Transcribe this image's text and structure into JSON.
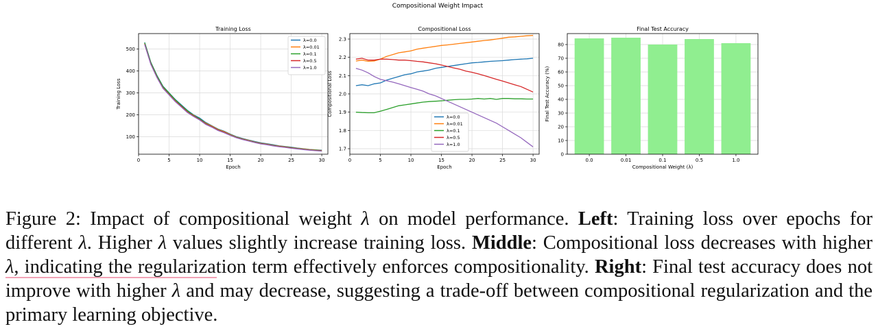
{
  "suptitle": "Compositional Weight Impact",
  "colors": {
    "lambda_0_0": "#1f77b4",
    "lambda_0_01": "#ff7f0e",
    "lambda_0_1": "#2ca02c",
    "lambda_0_5": "#d62728",
    "lambda_1_0": "#9467bd",
    "bar": "#90ee90"
  },
  "chart_data": [
    {
      "type": "line",
      "title": "Training Loss",
      "xlabel": "Epoch",
      "ylabel": "Training Loss",
      "xlim": [
        0,
        31
      ],
      "ylim": [
        20,
        570
      ],
      "xticks": [
        0,
        5,
        10,
        15,
        20,
        25,
        30
      ],
      "yticks": [
        100,
        200,
        300,
        400,
        500
      ],
      "grid": true,
      "legend": "top-right",
      "x": [
        1,
        2,
        3,
        4,
        5,
        6,
        7,
        8,
        9,
        10,
        11,
        12,
        13,
        14,
        15,
        16,
        17,
        18,
        19,
        20,
        21,
        22,
        23,
        24,
        25,
        26,
        27,
        28,
        29,
        30
      ],
      "series": [
        {
          "name": "λ=0.0",
          "values": [
            530,
            440,
            380,
            330,
            300,
            270,
            245,
            220,
            200,
            185,
            165,
            150,
            135,
            125,
            112,
            100,
            92,
            85,
            78,
            72,
            68,
            63,
            58,
            55,
            52,
            48,
            45,
            42,
            40,
            38
          ]
        },
        {
          "name": "λ=0.01",
          "values": [
            525,
            435,
            375,
            325,
            295,
            265,
            240,
            215,
            198,
            180,
            162,
            148,
            133,
            123,
            110,
            98,
            90,
            83,
            76,
            70,
            66,
            61,
            57,
            54,
            50,
            47,
            44,
            41,
            39,
            37
          ]
        },
        {
          "name": "λ=0.1",
          "values": [
            528,
            438,
            378,
            328,
            298,
            268,
            242,
            218,
            196,
            182,
            160,
            146,
            131,
            121,
            108,
            97,
            89,
            82,
            75,
            69,
            65,
            60,
            56,
            53,
            49,
            46,
            43,
            40,
            38,
            36
          ]
        },
        {
          "name": "λ=0.5",
          "values": [
            522,
            432,
            372,
            322,
            292,
            262,
            238,
            212,
            194,
            178,
            158,
            145,
            130,
            120,
            107,
            96,
            88,
            81,
            74,
            68,
            64,
            59,
            55,
            52,
            48,
            45,
            42,
            39,
            37,
            35
          ]
        },
        {
          "name": "λ=1.0",
          "values": [
            520,
            430,
            370,
            320,
            290,
            260,
            235,
            210,
            192,
            176,
            156,
            143,
            128,
            118,
            106,
            95,
            87,
            80,
            73,
            67,
            63,
            58,
            54,
            51,
            47,
            44,
            41,
            38,
            36,
            34
          ]
        }
      ]
    },
    {
      "type": "line",
      "title": "Compositional Loss",
      "xlabel": "Epoch",
      "ylabel": "Compositional Loss",
      "xlim": [
        0,
        31
      ],
      "ylim": [
        1.67,
        2.33
      ],
      "xticks": [
        0,
        5,
        10,
        15,
        20,
        25,
        30
      ],
      "yticks": [
        1.7,
        1.8,
        1.9,
        2.0,
        2.1,
        2.2,
        2.3
      ],
      "grid": true,
      "legend": "bottom-center",
      "x": [
        1,
        2,
        3,
        4,
        5,
        6,
        7,
        8,
        9,
        10,
        11,
        12,
        13,
        14,
        15,
        16,
        17,
        18,
        19,
        20,
        21,
        22,
        23,
        24,
        25,
        26,
        27,
        28,
        29,
        30
      ],
      "series": [
        {
          "name": "λ=0.0",
          "values": [
            2.045,
            2.05,
            2.045,
            2.055,
            2.06,
            2.075,
            2.085,
            2.095,
            2.105,
            2.11,
            2.12,
            2.125,
            2.13,
            2.14,
            2.145,
            2.15,
            2.155,
            2.16,
            2.165,
            2.17,
            2.172,
            2.175,
            2.178,
            2.18,
            2.182,
            2.185,
            2.188,
            2.19,
            2.192,
            2.195
          ]
        },
        {
          "name": "λ=0.01",
          "values": [
            2.18,
            2.185,
            2.178,
            2.18,
            2.19,
            2.205,
            2.215,
            2.225,
            2.23,
            2.235,
            2.245,
            2.25,
            2.255,
            2.26,
            2.265,
            2.268,
            2.272,
            2.276,
            2.28,
            2.284,
            2.288,
            2.292,
            2.295,
            2.3,
            2.305,
            2.31,
            2.312,
            2.315,
            2.318,
            2.32
          ]
        },
        {
          "name": "λ=0.1",
          "values": [
            1.9,
            1.898,
            1.897,
            1.897,
            1.905,
            1.915,
            1.925,
            1.935,
            1.94,
            1.945,
            1.95,
            1.955,
            1.958,
            1.96,
            1.962,
            1.965,
            1.968,
            1.97,
            1.97,
            1.972,
            1.975,
            1.972,
            1.975,
            1.97,
            1.975,
            1.975,
            1.973,
            1.973,
            1.972,
            1.972
          ]
        },
        {
          "name": "λ=0.5",
          "values": [
            2.19,
            2.195,
            2.185,
            2.185,
            2.19,
            2.19,
            2.188,
            2.185,
            2.185,
            2.182,
            2.178,
            2.175,
            2.17,
            2.165,
            2.158,
            2.15,
            2.142,
            2.135,
            2.125,
            2.118,
            2.11,
            2.1,
            2.09,
            2.08,
            2.07,
            2.06,
            2.05,
            2.04,
            2.025,
            2.01
          ]
        },
        {
          "name": "λ=1.0",
          "values": [
            2.14,
            2.13,
            2.115,
            2.095,
            2.08,
            2.072,
            2.065,
            2.055,
            2.045,
            2.035,
            2.025,
            2.015,
            2.0,
            1.99,
            1.975,
            1.96,
            1.945,
            1.93,
            1.915,
            1.9,
            1.885,
            1.87,
            1.855,
            1.84,
            1.82,
            1.8,
            1.78,
            1.76,
            1.735,
            1.71
          ]
        }
      ]
    },
    {
      "type": "bar",
      "title": "Final Test Accuracy",
      "xlabel": "Compositional Weight (λ)",
      "ylabel": "Final Test Accuracy (%)",
      "ylim": [
        0,
        88
      ],
      "yticks": [
        0,
        10,
        20,
        30,
        40,
        50,
        60,
        70,
        80
      ],
      "grid": true,
      "categories": [
        "0.0",
        "0.01",
        "0.1",
        "0.5",
        "1.0"
      ],
      "values": [
        84.5,
        85,
        80,
        84,
        81
      ]
    }
  ],
  "caption": {
    "figure_label": "Figure 2: Impact of compositional weight ",
    "lambda": "λ",
    "after_lambda1": " on model performance. ",
    "left_label": "Left",
    "left_text_a": ": Training loss over epochs for different ",
    "left_text_b": ". Higher ",
    "left_text_c": " values slightly increase training loss. ",
    "middle_label": "Middle",
    "middle_text_a": ": Compositional loss decreases with higher ",
    "middle_text_b": ", indicating the regularization term effectively enforces compositionality. ",
    "right_label": "Right",
    "right_text_a": ": Final test accuracy does not improve with higher ",
    "right_text_b": " and may decrease, suggesting a trade-off between compositional regularization and the primary learning objective."
  }
}
